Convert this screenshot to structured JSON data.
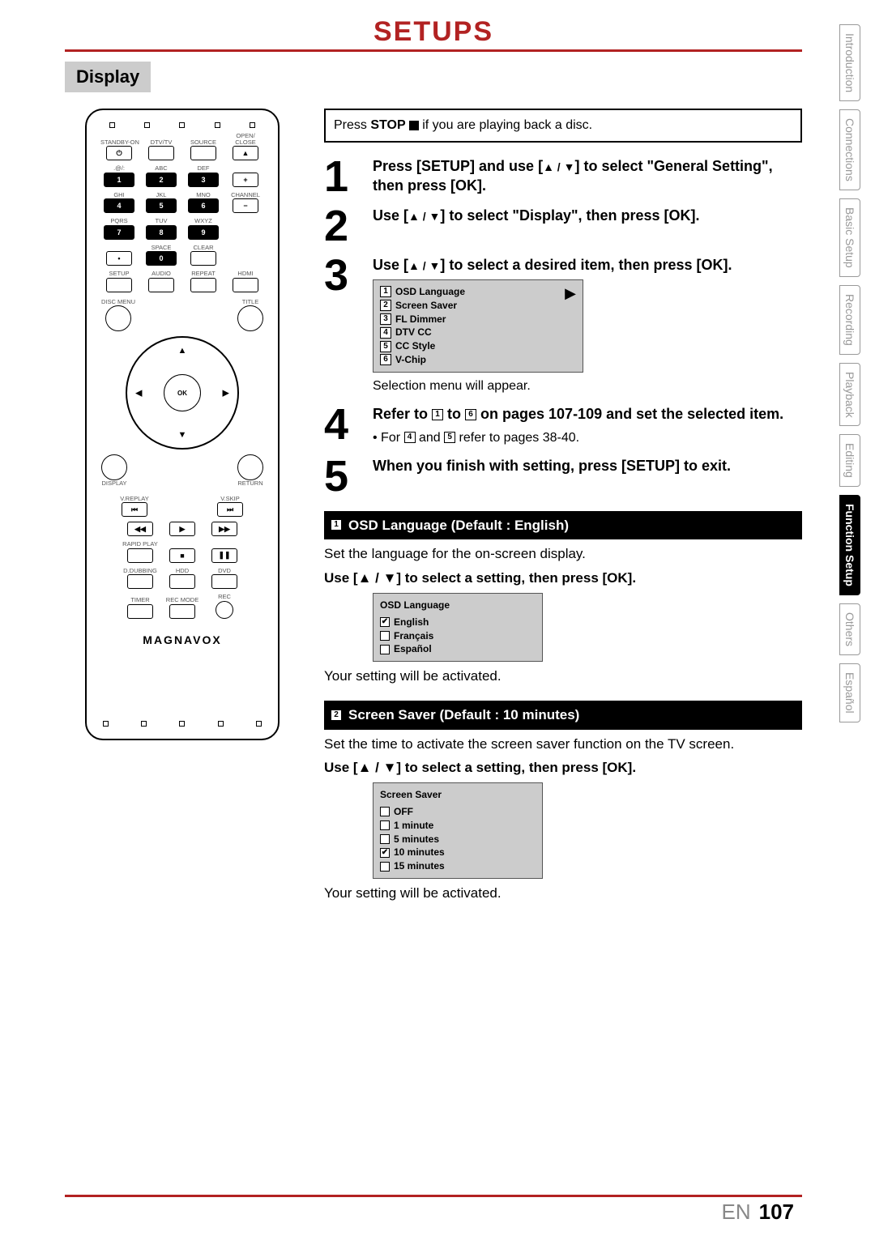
{
  "header": {
    "title": "SETUPS"
  },
  "section": {
    "label": "Display"
  },
  "noteBox": {
    "prefix": "Press ",
    "bold": "STOP ",
    "suffix": " if you are playing back a disc."
  },
  "steps": {
    "s1": {
      "num": "1",
      "t1": "Press [SETUP] and use [",
      "t2": "] to select \"General Setting\", then press [OK]."
    },
    "s2": {
      "num": "2",
      "t1": "Use [",
      "t2": "] to select \"Display\", then press [OK]."
    },
    "s3": {
      "num": "3",
      "t1": "Use [",
      "t2": "] to select a desired item, then press [OK]."
    },
    "s3sub": "Selection menu will appear.",
    "s4": {
      "num": "4",
      "t1": "Refer to ",
      "t2": " to ",
      "t3": " on pages 107-109 and set the selected item."
    },
    "s4sub": {
      "a": "• For ",
      "b": " and ",
      "c": " refer to pages 38-40."
    },
    "s5": {
      "num": "5",
      "text": "When you finish with setting, press [SETUP] to exit."
    }
  },
  "menuItems": [
    "OSD Language",
    "Screen Saver",
    "FL Dimmer",
    "DTV CC",
    "CC Style",
    "V-Chip"
  ],
  "sub1": {
    "title": "OSD Language (Default : English)",
    "desc": "Set the language for the on-screen display.",
    "instr": "Use [▲ / ▼] to select a setting, then press [OK].",
    "boxTitle": "OSD Language",
    "options": [
      "English",
      "Français",
      "Español"
    ],
    "checked": 0,
    "after": "Your setting will be activated."
  },
  "sub2": {
    "title": "Screen Saver (Default : 10 minutes)",
    "desc": "Set the time to activate the screen saver function on the TV screen.",
    "instr": "Use [▲ / ▼] to select a setting, then press [OK].",
    "boxTitle": "Screen Saver",
    "options": [
      "OFF",
      "1 minute",
      "5 minutes",
      "10  minutes",
      "15  minutes"
    ],
    "checked": 3,
    "after": "Your setting will be activated."
  },
  "sidebar": [
    "Introduction",
    "Connections",
    "Basic Setup",
    "Recording",
    "Playback",
    "Editing",
    "Function Setup",
    "Others",
    "Español"
  ],
  "sidebarActive": 6,
  "footer": {
    "lang": "EN",
    "page": "107"
  },
  "remote": {
    "row1": [
      "STANDBY-ON",
      "DTV/TV",
      "SOURCE",
      "OPEN/\nCLOSE"
    ],
    "numLabels": [
      ".@/:",
      "ABC",
      "DEF",
      "GHI",
      "JKL",
      "MNO",
      "PQRS",
      "TUV",
      "WXYZ"
    ],
    "nums": [
      "1",
      "2",
      "3",
      "4",
      "5",
      "6",
      "7",
      "8",
      "9"
    ],
    "space": "SPACE",
    "zero": "0",
    "clear": "CLEAR",
    "channel": "CHANNEL",
    "row3": [
      "SETUP",
      "AUDIO",
      "REPEAT",
      "HDMI"
    ],
    "discMenu": "DISC MENU",
    "titleBtn": "TITLE",
    "ok": "OK",
    "display": "DISPLAY",
    "ret": "RETURN",
    "vreplay": "V.REPLAY",
    "vskip": "V.SKIP",
    "rapid": "RAPID PLAY",
    "dub": "D.DUBBING",
    "hdd": "HDD",
    "dvd": "DVD",
    "timer": "TIMER",
    "recmode": "REC MODE",
    "rec": "REC",
    "brand": "MAGNAVOX",
    "highlighted": [
      "1",
      "2",
      "3",
      "4",
      "5",
      "6",
      "7",
      "8",
      "9",
      "0"
    ]
  }
}
